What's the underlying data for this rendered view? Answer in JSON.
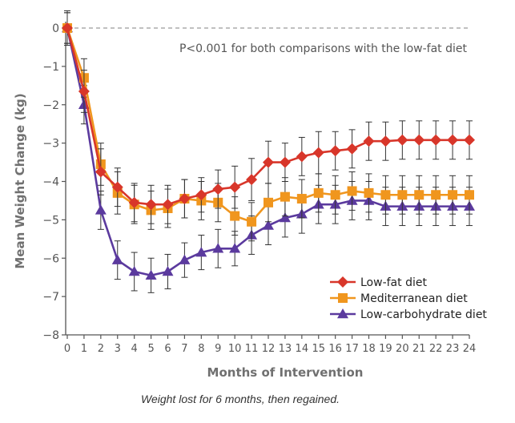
{
  "chart_data": {
    "type": "line",
    "title": "",
    "xlabel": "Months of Intervention",
    "ylabel": "Mean Weight Change (kg)",
    "xlim": [
      0,
      24
    ],
    "ylim": [
      -8,
      0
    ],
    "xticks": [
      "0",
      "1",
      "2",
      "3",
      "4",
      "5",
      "6",
      "7",
      "8",
      "9",
      "10",
      "11",
      "12",
      "13",
      "14",
      "15",
      "16",
      "17",
      "18",
      "19",
      "20",
      "21",
      "22",
      "23",
      "24"
    ],
    "yticks": [
      "0",
      "−1",
      "−2",
      "−3",
      "−4",
      "−5",
      "−6",
      "−7",
      "−8"
    ],
    "reference_line": {
      "y": 0,
      "style": "dashed"
    },
    "annotation": "P<0.001 for both comparisons with the low-fat diet",
    "legend_position": "bottom-right",
    "x": [
      0,
      1,
      2,
      3,
      4,
      5,
      6,
      7,
      8,
      9,
      10,
      11,
      12,
      13,
      14,
      15,
      16,
      17,
      18,
      19,
      20,
      21,
      22,
      23,
      24
    ],
    "series": [
      {
        "name": "Low-fat diet",
        "marker": "diamond",
        "color": "#d8362a",
        "values": [
          0,
          -1.65,
          -3.75,
          -4.15,
          -4.55,
          -4.6,
          -4.6,
          -4.45,
          -4.35,
          -4.2,
          -4.15,
          -3.95,
          -3.5,
          -3.5,
          -3.35,
          -3.25,
          -3.2,
          -3.15,
          -2.95,
          -2.95,
          -2.92,
          -2.92,
          -2.92,
          -2.92,
          -2.92
        ],
        "error": [
          0.4,
          0.55,
          0.6,
          0.5,
          0.5,
          0.5,
          0.5,
          0.5,
          0.45,
          0.5,
          0.55,
          0.55,
          0.55,
          0.5,
          0.5,
          0.55,
          0.5,
          0.5,
          0.5,
          0.5,
          0.5,
          0.5,
          0.5,
          0.5,
          0.5
        ]
      },
      {
        "name": "Mediterranean diet",
        "marker": "square",
        "color": "#f0961e",
        "values": [
          0,
          -1.3,
          -3.55,
          -4.3,
          -4.6,
          -4.75,
          -4.7,
          -4.45,
          -4.5,
          -4.55,
          -4.9,
          -5.05,
          -4.55,
          -4.4,
          -4.45,
          -4.3,
          -4.35,
          -4.25,
          -4.3,
          -4.35,
          -4.35,
          -4.35,
          -4.35,
          -4.35,
          -4.35
        ],
        "error": [
          0.4,
          0.5,
          0.55,
          0.55,
          0.5,
          0.5,
          0.5,
          0.5,
          0.5,
          0.5,
          0.5,
          0.5,
          0.5,
          0.5,
          0.5,
          0.5,
          0.5,
          0.5,
          0.5,
          0.5,
          0.5,
          0.5,
          0.5,
          0.5,
          0.5
        ]
      },
      {
        "name": "Low-carbohydrate diet",
        "marker": "triangle",
        "color": "#5b3a9e",
        "values": [
          0,
          -2.0,
          -4.75,
          -6.05,
          -6.35,
          -6.45,
          -6.35,
          -6.05,
          -5.85,
          -5.75,
          -5.75,
          -5.4,
          -5.15,
          -4.95,
          -4.85,
          -4.6,
          -4.6,
          -4.5,
          -4.5,
          -4.65,
          -4.65,
          -4.65,
          -4.65,
          -4.65,
          -4.65
        ],
        "error": [
          0.45,
          0.5,
          0.5,
          0.5,
          0.5,
          0.45,
          0.45,
          0.45,
          0.45,
          0.5,
          0.45,
          0.5,
          0.5,
          0.5,
          0.5,
          0.5,
          0.5,
          0.5,
          0.5,
          0.5,
          0.5,
          0.5,
          0.5,
          0.5,
          0.5
        ]
      }
    ]
  },
  "caption": "Weight lost for 6 months, then regained."
}
